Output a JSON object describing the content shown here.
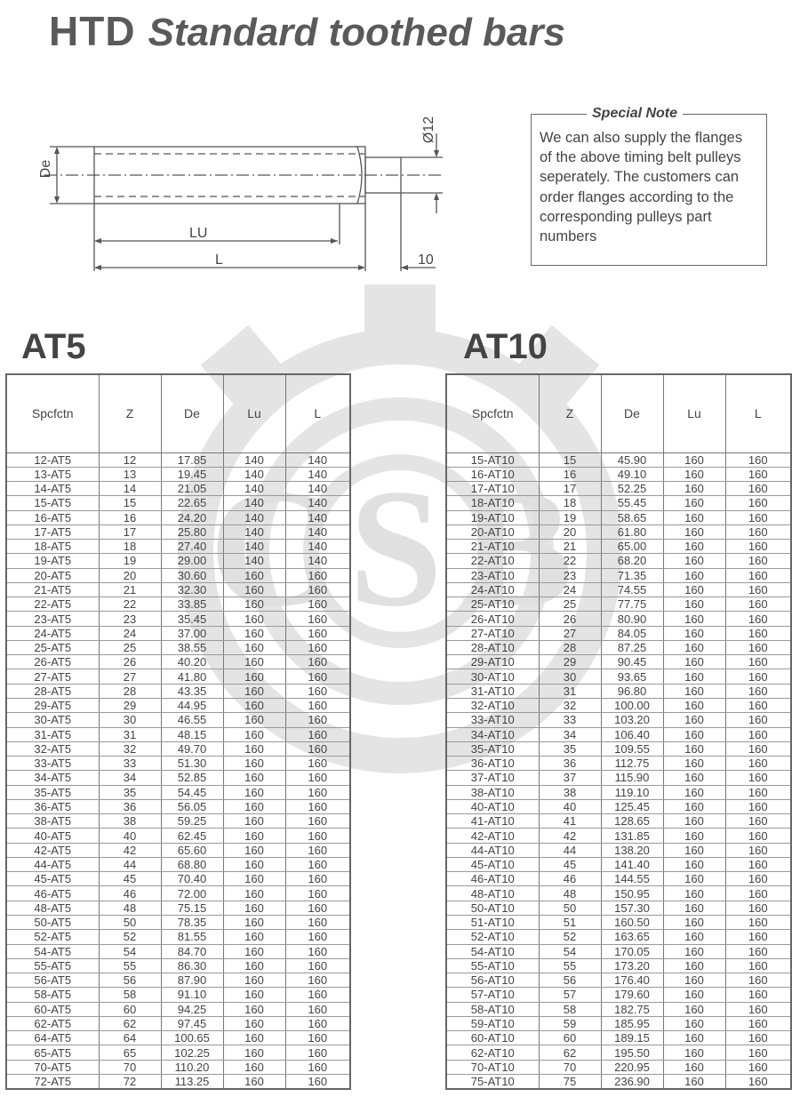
{
  "title": {
    "prefix": "HTD",
    "main": "Standard toothed bars"
  },
  "diagram": {
    "labels": {
      "de": "De",
      "lu": "LU",
      "l": "L",
      "shaft_dia": "Ø12",
      "shaft_len": "10"
    }
  },
  "note": {
    "title": "Special Note",
    "body": "We can also supply the flanges of the above timing belt pulleys seperately. The customers can order flanges according to the corresponding pulleys part numbers"
  },
  "watermark": "CSB",
  "columns": [
    "Spcfctn",
    "Z",
    "De",
    "Lu",
    "L"
  ],
  "at5": {
    "title": "AT5",
    "rows": [
      [
        "12-AT5",
        "12",
        "17.85",
        "140",
        "140"
      ],
      [
        "13-AT5",
        "13",
        "19.45",
        "140",
        "140"
      ],
      [
        "14-AT5",
        "14",
        "21.05",
        "140",
        "140"
      ],
      [
        "15-AT5",
        "15",
        "22.65",
        "140",
        "140"
      ],
      [
        "16-AT5",
        "16",
        "24.20",
        "140",
        "140"
      ],
      [
        "17-AT5",
        "17",
        "25.80",
        "140",
        "140"
      ],
      [
        "18-AT5",
        "18",
        "27.40",
        "140",
        "140"
      ],
      [
        "19-AT5",
        "19",
        "29.00",
        "140",
        "140"
      ],
      [
        "20-AT5",
        "20",
        "30.60",
        "160",
        "160"
      ],
      [
        "21-AT5",
        "21",
        "32.30",
        "160",
        "160"
      ],
      [
        "22-AT5",
        "22",
        "33.85",
        "160",
        "160"
      ],
      [
        "23-AT5",
        "23",
        "35.45",
        "160",
        "160"
      ],
      [
        "24-AT5",
        "24",
        "37.00",
        "160",
        "160"
      ],
      [
        "25-AT5",
        "25",
        "38.55",
        "160",
        "160"
      ],
      [
        "26-AT5",
        "26",
        "40.20",
        "160",
        "160"
      ],
      [
        "27-AT5",
        "27",
        "41.80",
        "160",
        "160"
      ],
      [
        "28-AT5",
        "28",
        "43.35",
        "160",
        "160"
      ],
      [
        "29-AT5",
        "29",
        "44.95",
        "160",
        "160"
      ],
      [
        "30-AT5",
        "30",
        "46.55",
        "160",
        "160"
      ],
      [
        "31-AT5",
        "31",
        "48.15",
        "160",
        "160"
      ],
      [
        "32-AT5",
        "32",
        "49.70",
        "160",
        "160"
      ],
      [
        "33-AT5",
        "33",
        "51.30",
        "160",
        "160"
      ],
      [
        "34-AT5",
        "34",
        "52.85",
        "160",
        "160"
      ],
      [
        "35-AT5",
        "35",
        "54.45",
        "160",
        "160"
      ],
      [
        "36-AT5",
        "36",
        "56.05",
        "160",
        "160"
      ],
      [
        "38-AT5",
        "38",
        "59.25",
        "160",
        "160"
      ],
      [
        "40-AT5",
        "40",
        "62.45",
        "160",
        "160"
      ],
      [
        "42-AT5",
        "42",
        "65.60",
        "160",
        "160"
      ],
      [
        "44-AT5",
        "44",
        "68.80",
        "160",
        "160"
      ],
      [
        "45-AT5",
        "45",
        "70.40",
        "160",
        "160"
      ],
      [
        "46-AT5",
        "46",
        "72.00",
        "160",
        "160"
      ],
      [
        "48-AT5",
        "48",
        "75.15",
        "160",
        "160"
      ],
      [
        "50-AT5",
        "50",
        "78.35",
        "160",
        "160"
      ],
      [
        "52-AT5",
        "52",
        "81.55",
        "160",
        "160"
      ],
      [
        "54-AT5",
        "54",
        "84.70",
        "160",
        "160"
      ],
      [
        "55-AT5",
        "55",
        "86.30",
        "160",
        "160"
      ],
      [
        "56-AT5",
        "56",
        "87.90",
        "160",
        "160"
      ],
      [
        "58-AT5",
        "58",
        "91.10",
        "160",
        "160"
      ],
      [
        "60-AT5",
        "60",
        "94.25",
        "160",
        "160"
      ],
      [
        "62-AT5",
        "62",
        "97.45",
        "160",
        "160"
      ],
      [
        "64-AT5",
        "64",
        "100.65",
        "160",
        "160"
      ],
      [
        "65-AT5",
        "65",
        "102.25",
        "160",
        "160"
      ],
      [
        "70-AT5",
        "70",
        "110.20",
        "160",
        "160"
      ],
      [
        "72-AT5",
        "72",
        "113.25",
        "160",
        "160"
      ]
    ]
  },
  "at10": {
    "title": "AT10",
    "rows": [
      [
        "15-AT10",
        "15",
        "45.90",
        "160",
        "160"
      ],
      [
        "16-AT10",
        "16",
        "49.10",
        "160",
        "160"
      ],
      [
        "17-AT10",
        "17",
        "52.25",
        "160",
        "160"
      ],
      [
        "18-AT10",
        "18",
        "55.45",
        "160",
        "160"
      ],
      [
        "19-AT10",
        "19",
        "58.65",
        "160",
        "160"
      ],
      [
        "20-AT10",
        "20",
        "61.80",
        "160",
        "160"
      ],
      [
        "21-AT10",
        "21",
        "65.00",
        "160",
        "160"
      ],
      [
        "22-AT10",
        "22",
        "68.20",
        "160",
        "160"
      ],
      [
        "23-AT10",
        "23",
        "71.35",
        "160",
        "160"
      ],
      [
        "24-AT10",
        "24",
        "74.55",
        "160",
        "160"
      ],
      [
        "25-AT10",
        "25",
        "77.75",
        "160",
        "160"
      ],
      [
        "26-AT10",
        "26",
        "80.90",
        "160",
        "160"
      ],
      [
        "27-AT10",
        "27",
        "84.05",
        "160",
        "160"
      ],
      [
        "28-AT10",
        "28",
        "87.25",
        "160",
        "160"
      ],
      [
        "29-AT10",
        "29",
        "90.45",
        "160",
        "160"
      ],
      [
        "30-AT10",
        "30",
        "93.65",
        "160",
        "160"
      ],
      [
        "31-AT10",
        "31",
        "96.80",
        "160",
        "160"
      ],
      [
        "32-AT10",
        "32",
        "100.00",
        "160",
        "160"
      ],
      [
        "33-AT10",
        "33",
        "103.20",
        "160",
        "160"
      ],
      [
        "34-AT10",
        "34",
        "106.40",
        "160",
        "160"
      ],
      [
        "35-AT10",
        "35",
        "109.55",
        "160",
        "160"
      ],
      [
        "36-AT10",
        "36",
        "112.75",
        "160",
        "160"
      ],
      [
        "37-AT10",
        "37",
        "115.90",
        "160",
        "160"
      ],
      [
        "38-AT10",
        "38",
        "119.10",
        "160",
        "160"
      ],
      [
        "40-AT10",
        "40",
        "125.45",
        "160",
        "160"
      ],
      [
        "41-AT10",
        "41",
        "128.65",
        "160",
        "160"
      ],
      [
        "42-AT10",
        "42",
        "131.85",
        "160",
        "160"
      ],
      [
        "44-AT10",
        "44",
        "138.20",
        "160",
        "160"
      ],
      [
        "45-AT10",
        "45",
        "141.40",
        "160",
        "160"
      ],
      [
        "46-AT10",
        "46",
        "144.55",
        "160",
        "160"
      ],
      [
        "48-AT10",
        "48",
        "150.95",
        "160",
        "160"
      ],
      [
        "50-AT10",
        "50",
        "157.30",
        "160",
        "160"
      ],
      [
        "51-AT10",
        "51",
        "160.50",
        "160",
        "160"
      ],
      [
        "52-AT10",
        "52",
        "163.65",
        "160",
        "160"
      ],
      [
        "54-AT10",
        "54",
        "170.05",
        "160",
        "160"
      ],
      [
        "55-AT10",
        "55",
        "173.20",
        "160",
        "160"
      ],
      [
        "56-AT10",
        "56",
        "176.40",
        "160",
        "160"
      ],
      [
        "57-AT10",
        "57",
        "179.60",
        "160",
        "160"
      ],
      [
        "58-AT10",
        "58",
        "182.75",
        "160",
        "160"
      ],
      [
        "59-AT10",
        "59",
        "185.95",
        "160",
        "160"
      ],
      [
        "60-AT10",
        "60",
        "189.15",
        "160",
        "160"
      ],
      [
        "62-AT10",
        "62",
        "195.50",
        "160",
        "160"
      ],
      [
        "70-AT10",
        "70",
        "220.95",
        "160",
        "160"
      ],
      [
        "75-AT10",
        "75",
        "236.90",
        "160",
        "160"
      ]
    ]
  }
}
